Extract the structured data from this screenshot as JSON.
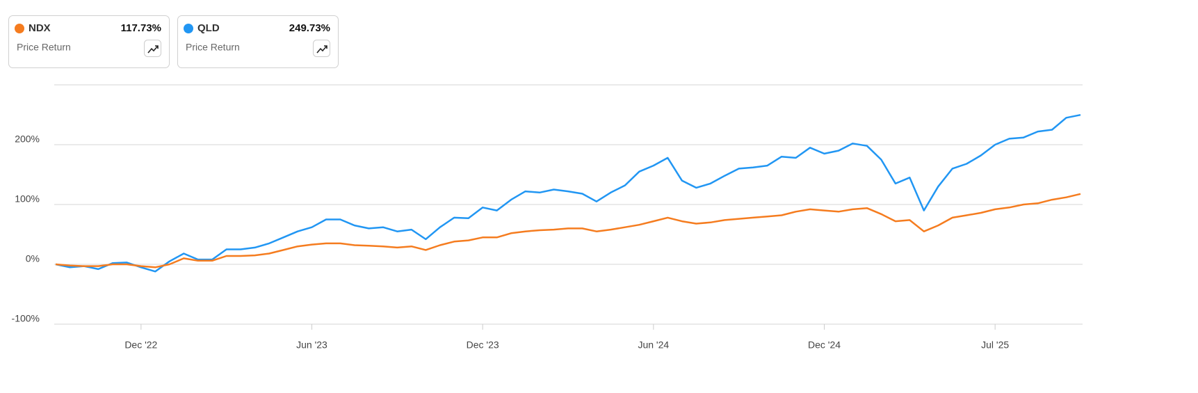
{
  "chart_data": {
    "type": "line",
    "metric": "Price Return",
    "legend_values": [
      "117.73%",
      "249.73%"
    ],
    "categories": [
      null,
      null,
      null,
      null,
      null,
      null,
      "Dec '22",
      null,
      null,
      null,
      null,
      null,
      null,
      null,
      null,
      null,
      null,
      null,
      "Jun '23",
      null,
      null,
      null,
      null,
      null,
      null,
      null,
      null,
      null,
      null,
      null,
      "Dec '23",
      null,
      null,
      null,
      null,
      null,
      null,
      null,
      null,
      null,
      null,
      null,
      "Jun '24",
      null,
      null,
      null,
      null,
      null,
      null,
      null,
      null,
      null,
      null,
      null,
      "Dec '24",
      null,
      null,
      null,
      null,
      null,
      null,
      null,
      null,
      null,
      null,
      null,
      "Jul '25",
      null,
      null,
      null,
      null,
      null,
      null
    ],
    "series": [
      {
        "name": "NDX",
        "color": "#f57c1f",
        "values": [
          0,
          -2,
          -3,
          -3,
          0,
          0,
          -3,
          -5,
          0,
          10,
          6,
          6,
          14,
          14,
          15,
          18,
          24,
          30,
          33,
          35,
          35,
          32,
          31,
          30,
          28,
          30,
          24,
          32,
          38,
          40,
          45,
          45,
          52,
          55,
          57,
          58,
          60,
          60,
          55,
          58,
          62,
          66,
          72,
          78,
          72,
          68,
          70,
          74,
          76,
          78,
          80,
          82,
          88,
          92,
          90,
          88,
          92,
          94,
          84,
          72,
          74,
          55,
          65,
          78,
          82,
          86,
          92,
          95,
          100,
          102,
          108,
          112,
          117.73
        ]
      },
      {
        "name": "QLD",
        "color": "#2196f3",
        "values": [
          0,
          -5,
          -3,
          -8,
          2,
          3,
          -5,
          -12,
          5,
          18,
          8,
          8,
          25,
          25,
          28,
          35,
          45,
          55,
          62,
          75,
          75,
          65,
          60,
          62,
          55,
          58,
          42,
          62,
          78,
          77,
          95,
          90,
          108,
          122,
          120,
          125,
          122,
          118,
          105,
          120,
          132,
          155,
          165,
          178,
          140,
          128,
          135,
          148,
          160,
          162,
          165,
          180,
          178,
          195,
          185,
          190,
          202,
          198,
          175,
          135,
          145,
          90,
          130,
          160,
          168,
          182,
          200,
          210,
          212,
          222,
          225,
          245,
          249.73
        ]
      }
    ],
    "ylim": [
      -100,
      300
    ],
    "yticks": [
      {
        "value": -100,
        "label": "-100%"
      },
      {
        "value": 0,
        "label": "0%"
      },
      {
        "value": 100,
        "label": "100%"
      },
      {
        "value": 200,
        "label": "200%"
      }
    ],
    "grid": true
  }
}
